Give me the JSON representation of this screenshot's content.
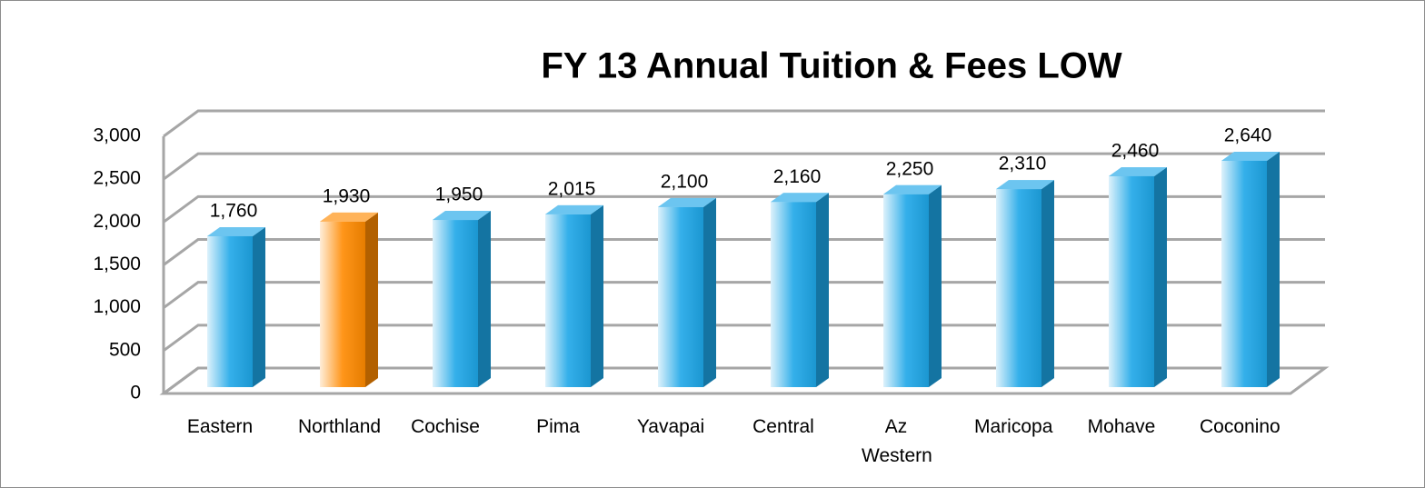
{
  "chart_data": {
    "type": "bar3d",
    "title": "FY 13 Annual Tuition & Fees LOW",
    "categories": [
      "Eastern",
      "Northland",
      "Cochise",
      "Pima",
      "Yavapai",
      "Central",
      "Az Western",
      "Maricopa",
      "Mohave",
      "Coconino"
    ],
    "values": [
      1760,
      1930,
      1950,
      2015,
      2100,
      2160,
      2250,
      2310,
      2460,
      2640
    ],
    "value_labels": [
      "1,760",
      "1,930",
      "1,950",
      "2,015",
      "2,100",
      "2,160",
      "2,250",
      "2,310",
      "2,460",
      "2,640"
    ],
    "colors": [
      "#1ea7e8",
      "#ff8a00",
      "#1ea7e8",
      "#1ea7e8",
      "#1ea7e8",
      "#1ea7e8",
      "#1ea7e8",
      "#1ea7e8",
      "#1ea7e8",
      "#1ea7e8"
    ],
    "ylim": [
      0,
      3000
    ],
    "yticks": [
      0,
      500,
      {
        "value": 1000,
        "label": "1,000"
      },
      {
        "value": 1500,
        "label": "1,500"
      },
      {
        "value": 2000,
        "label": "2,000"
      },
      {
        "value": 2500,
        "label": "2,500"
      },
      {
        "value": 3000,
        "label": "3,000"
      }
    ],
    "grid": true
  }
}
